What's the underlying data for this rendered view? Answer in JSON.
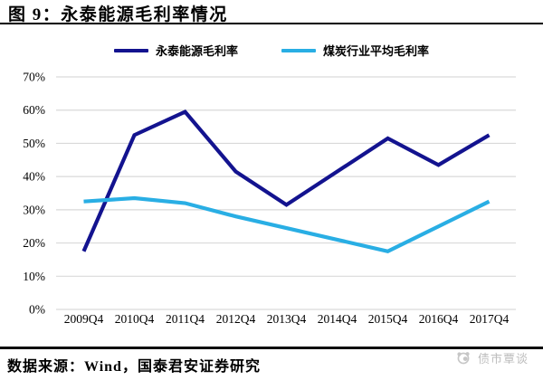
{
  "header": {
    "title": "图 9：永泰能源毛利率情况"
  },
  "chart_data": {
    "type": "line",
    "title": "永泰能源毛利率情况",
    "categories": [
      "2009Q4",
      "2010Q4",
      "2011Q4",
      "2012Q4",
      "2013Q4",
      "2014Q4",
      "2015Q4",
      "2016Q4",
      "2017Q4"
    ],
    "series": [
      {
        "name": "永泰能源毛利率",
        "color": "#13138F",
        "values": [
          17.5,
          52.5,
          59.5,
          41.5,
          31.5,
          41.5,
          51.5,
          43.5,
          52.5
        ]
      },
      {
        "name": "煤炭行业平均毛利率",
        "color": "#29AEE4",
        "values": [
          32.5,
          33.5,
          32.0,
          28.0,
          24.5,
          21.0,
          17.5,
          25.0,
          32.5
        ]
      }
    ],
    "xlabel": "",
    "ylabel": "",
    "ylim": [
      0,
      70
    ],
    "ytick_step": 10,
    "ytick_format": "{v}%",
    "grid": "horizontal",
    "gridline_color": "#d9d9d9",
    "legend_position": "top"
  },
  "footer": {
    "source": "数据来源：Wind，国泰君安证券研究",
    "watermark": "债市覃谈"
  }
}
